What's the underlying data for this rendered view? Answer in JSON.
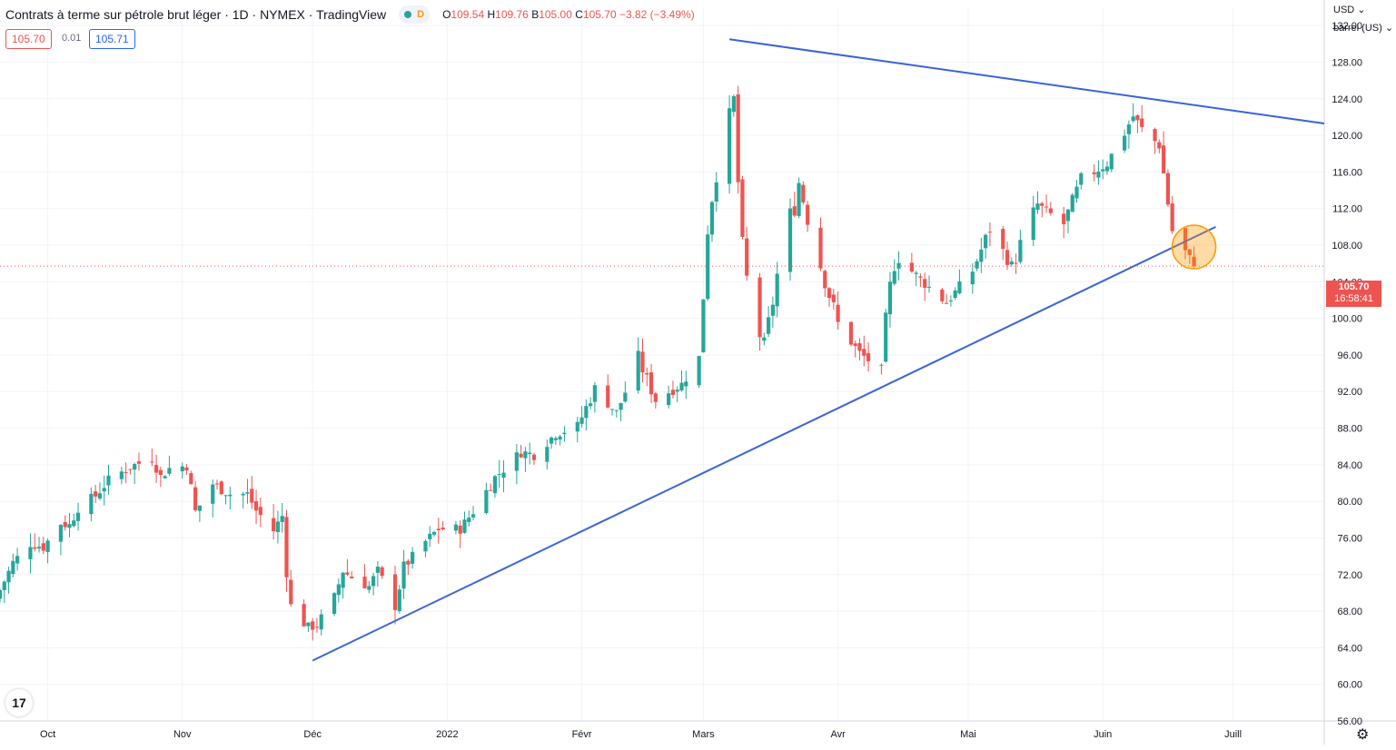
{
  "header": {
    "title": "Contrats à terme sur pétrole brut léger · 1D · NYMEX · TradingView",
    "interval_badge": "D",
    "ohlc": {
      "o_label": "O",
      "o": "109.54",
      "h_label": "H",
      "h": "109.76",
      "b_label": "B",
      "b": "105.00",
      "c_label": "C",
      "c": "105.70",
      "change": "−3.82 (−3.49%)"
    },
    "sell_price": "105.70",
    "spread": "0.01",
    "buy_price": "105.71"
  },
  "price_scale": {
    "currency": "USD",
    "unit": "barrel (US)",
    "current_price": "105.70",
    "countdown": "16:58:41"
  },
  "colors": {
    "up": "#26a69a",
    "down": "#ef5350",
    "trendline": "#3a63d8",
    "highlight": "#ff9800",
    "grid": "#f0f3fa"
  },
  "icons": {
    "logo": "tradingview-logo-icon",
    "settings": "gear-icon"
  },
  "logo_text": "17",
  "chart_data": {
    "type": "candlestick",
    "title": "Contrats à terme sur pétrole brut léger · 1D · NYMEX · TradingView",
    "ylim": [
      56,
      134
    ],
    "y_ticks": [
      "132.00",
      "128.00",
      "124.00",
      "120.00",
      "116.00",
      "112.00",
      "108.00",
      "104.00",
      "100.00",
      "96.00",
      "92.00",
      "88.00",
      "84.00",
      "80.00",
      "76.00",
      "72.00",
      "68.00",
      "64.00",
      "60.00",
      "56.00"
    ],
    "x_ticks": [
      {
        "label": "Oct",
        "date": "2021-10-01"
      },
      {
        "label": "Nov",
        "date": "2021-11-01"
      },
      {
        "label": "Déc",
        "date": "2021-12-01"
      },
      {
        "label": "2022",
        "date": "2022-01-01"
      },
      {
        "label": "Févr",
        "date": "2022-02-01"
      },
      {
        "label": "Mars",
        "date": "2022-03-01"
      },
      {
        "label": "Avr",
        "date": "2022-04-01"
      },
      {
        "label": "Mai",
        "date": "2022-05-01"
      },
      {
        "label": "Juin",
        "date": "2022-06-01"
      },
      {
        "label": "Juill",
        "date": "2022-07-01"
      }
    ],
    "x_range": [
      "2021-09-20",
      "2022-07-22"
    ],
    "current_price": 105.7,
    "closes": [
      {
        "date": "2021-09-20",
        "close": 70.3
      },
      {
        "date": "2021-09-23",
        "close": 73.3
      },
      {
        "date": "2021-09-27",
        "close": 75.4
      },
      {
        "date": "2021-09-30",
        "close": 75.0
      },
      {
        "date": "2021-10-04",
        "close": 77.6
      },
      {
        "date": "2021-10-06",
        "close": 77.4
      },
      {
        "date": "2021-10-08",
        "close": 79.3
      },
      {
        "date": "2021-10-12",
        "close": 80.6
      },
      {
        "date": "2021-10-15",
        "close": 82.3
      },
      {
        "date": "2021-10-20",
        "close": 83.8
      },
      {
        "date": "2021-10-25",
        "close": 84.7
      },
      {
        "date": "2021-10-27",
        "close": 82.7
      },
      {
        "date": "2021-10-29",
        "close": 83.6
      },
      {
        "date": "2021-11-02",
        "close": 83.9
      },
      {
        "date": "2021-11-04",
        "close": 78.8
      },
      {
        "date": "2021-11-08",
        "close": 81.9
      },
      {
        "date": "2021-11-10",
        "close": 81.3
      },
      {
        "date": "2021-11-12",
        "close": 80.8
      },
      {
        "date": "2021-11-16",
        "close": 80.8
      },
      {
        "date": "2021-11-18",
        "close": 79.0
      },
      {
        "date": "2021-11-22",
        "close": 76.8
      },
      {
        "date": "2021-11-24",
        "close": 78.4
      },
      {
        "date": "2021-11-26",
        "close": 68.2
      },
      {
        "date": "2021-11-30",
        "close": 66.2
      },
      {
        "date": "2021-12-02",
        "close": 66.5
      },
      {
        "date": "2021-12-06",
        "close": 69.5
      },
      {
        "date": "2021-12-08",
        "close": 72.4
      },
      {
        "date": "2021-12-10",
        "close": 71.7
      },
      {
        "date": "2021-12-14",
        "close": 70.7
      },
      {
        "date": "2021-12-16",
        "close": 72.4
      },
      {
        "date": "2021-12-20",
        "close": 68.6
      },
      {
        "date": "2021-12-22",
        "close": 72.8
      },
      {
        "date": "2021-12-27",
        "close": 75.6
      },
      {
        "date": "2021-12-30",
        "close": 76.99
      },
      {
        "date": "2022-01-04",
        "close": 77.0
      },
      {
        "date": "2022-01-07",
        "close": 78.9
      },
      {
        "date": "2022-01-12",
        "close": 82.6
      },
      {
        "date": "2022-01-18",
        "close": 85.4
      },
      {
        "date": "2022-01-21",
        "close": 85.1
      },
      {
        "date": "2022-01-26",
        "close": 87.4
      },
      {
        "date": "2022-01-31",
        "close": 88.2
      },
      {
        "date": "2022-02-04",
        "close": 92.3
      },
      {
        "date": "2022-02-09",
        "close": 89.7
      },
      {
        "date": "2022-02-14",
        "close": 95.5
      },
      {
        "date": "2022-02-18",
        "close": 91.1
      },
      {
        "date": "2022-02-24",
        "close": 92.8
      },
      {
        "date": "2022-02-28",
        "close": 95.7
      },
      {
        "date": "2022-03-02",
        "close": 110.6
      },
      {
        "date": "2022-03-04",
        "close": 115.7
      },
      {
        "date": "2022-03-08",
        "close": 123.7
      },
      {
        "date": "2022-03-10",
        "close": 106.0
      },
      {
        "date": "2022-03-15",
        "close": 96.4
      },
      {
        "date": "2022-03-18",
        "close": 104.7
      },
      {
        "date": "2022-03-23",
        "close": 114.9
      },
      {
        "date": "2022-03-28",
        "close": 105.96
      },
      {
        "date": "2022-04-01",
        "close": 99.3
      },
      {
        "date": "2022-04-06",
        "close": 96.2
      },
      {
        "date": "2022-04-11",
        "close": 94.3
      },
      {
        "date": "2022-04-14",
        "close": 106.95
      },
      {
        "date": "2022-04-21",
        "close": 103.8
      },
      {
        "date": "2022-04-26",
        "close": 101.7
      },
      {
        "date": "2022-05-02",
        "close": 105.2
      },
      {
        "date": "2022-05-06",
        "close": 109.8
      },
      {
        "date": "2022-05-11",
        "close": 105.7
      },
      {
        "date": "2022-05-17",
        "close": 112.4
      },
      {
        "date": "2022-05-23",
        "close": 110.3
      },
      {
        "date": "2022-05-27",
        "close": 115.1
      },
      {
        "date": "2022-06-02",
        "close": 116.9
      },
      {
        "date": "2022-06-08",
        "close": 122.1
      },
      {
        "date": "2022-06-10",
        "close": 120.7
      },
      {
        "date": "2022-06-14",
        "close": 118.9
      },
      {
        "date": "2022-06-17",
        "close": 109.6
      },
      {
        "date": "2022-06-22",
        "close": 105.7
      }
    ],
    "trendlines": [
      {
        "name": "resistance",
        "start": {
          "date": "2022-03-07",
          "price": 130.5
        },
        "end": {
          "date": "2022-07-22",
          "price": 121.3
        }
      },
      {
        "name": "support",
        "start": {
          "date": "2021-12-01",
          "price": 62.6
        },
        "end": {
          "date": "2022-06-27",
          "price": 110.0
        }
      }
    ],
    "highlight": {
      "date": "2022-06-22",
      "price": 107.8
    }
  }
}
